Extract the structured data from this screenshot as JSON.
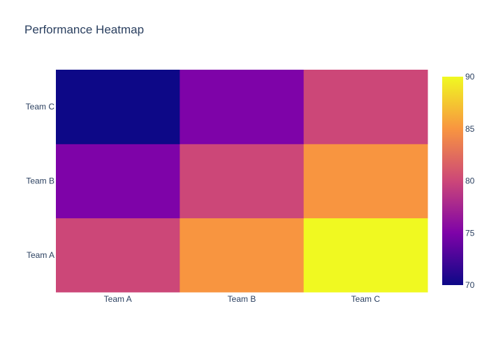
{
  "chart_data": {
    "type": "heatmap",
    "title": "Performance Heatmap",
    "xlabel": "",
    "ylabel": "",
    "x_categories": [
      "Team A",
      "Team B",
      "Team C"
    ],
    "y_categories": [
      "Team A",
      "Team B",
      "Team C"
    ],
    "z": [
      [
        80,
        85,
        90
      ],
      [
        75,
        80,
        85
      ],
      [
        70,
        75,
        80
      ]
    ],
    "colorscale": "Plasma",
    "colorbar": {
      "range": [
        70,
        90
      ],
      "ticks": [
        70,
        75,
        80,
        85,
        90
      ]
    },
    "grid": false,
    "legend": "none"
  }
}
